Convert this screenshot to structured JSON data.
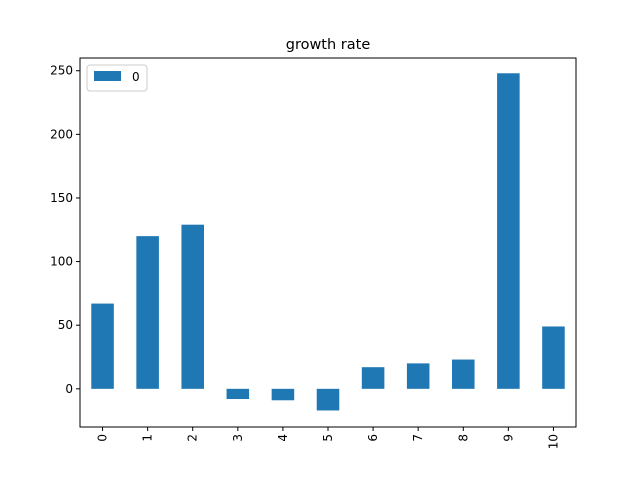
{
  "chart_data": {
    "type": "bar",
    "title": "growth rate",
    "xlabel": "",
    "ylabel": "",
    "categories": [
      "0",
      "1",
      "2",
      "3",
      "4",
      "5",
      "6",
      "7",
      "8",
      "9",
      "10"
    ],
    "series": [
      {
        "name": "0",
        "color": "#1f77b4",
        "values": [
          67,
          120,
          129,
          -8,
          -9,
          -17,
          17,
          20,
          23,
          248,
          49
        ]
      }
    ],
    "ylim": [
      -30,
      260
    ],
    "yticks": [
      0,
      50,
      100,
      150,
      200,
      250
    ],
    "ytick_labels": [
      "0",
      "50",
      "100",
      "150",
      "200",
      "250"
    ],
    "grid": false,
    "legend": "top-left"
  }
}
